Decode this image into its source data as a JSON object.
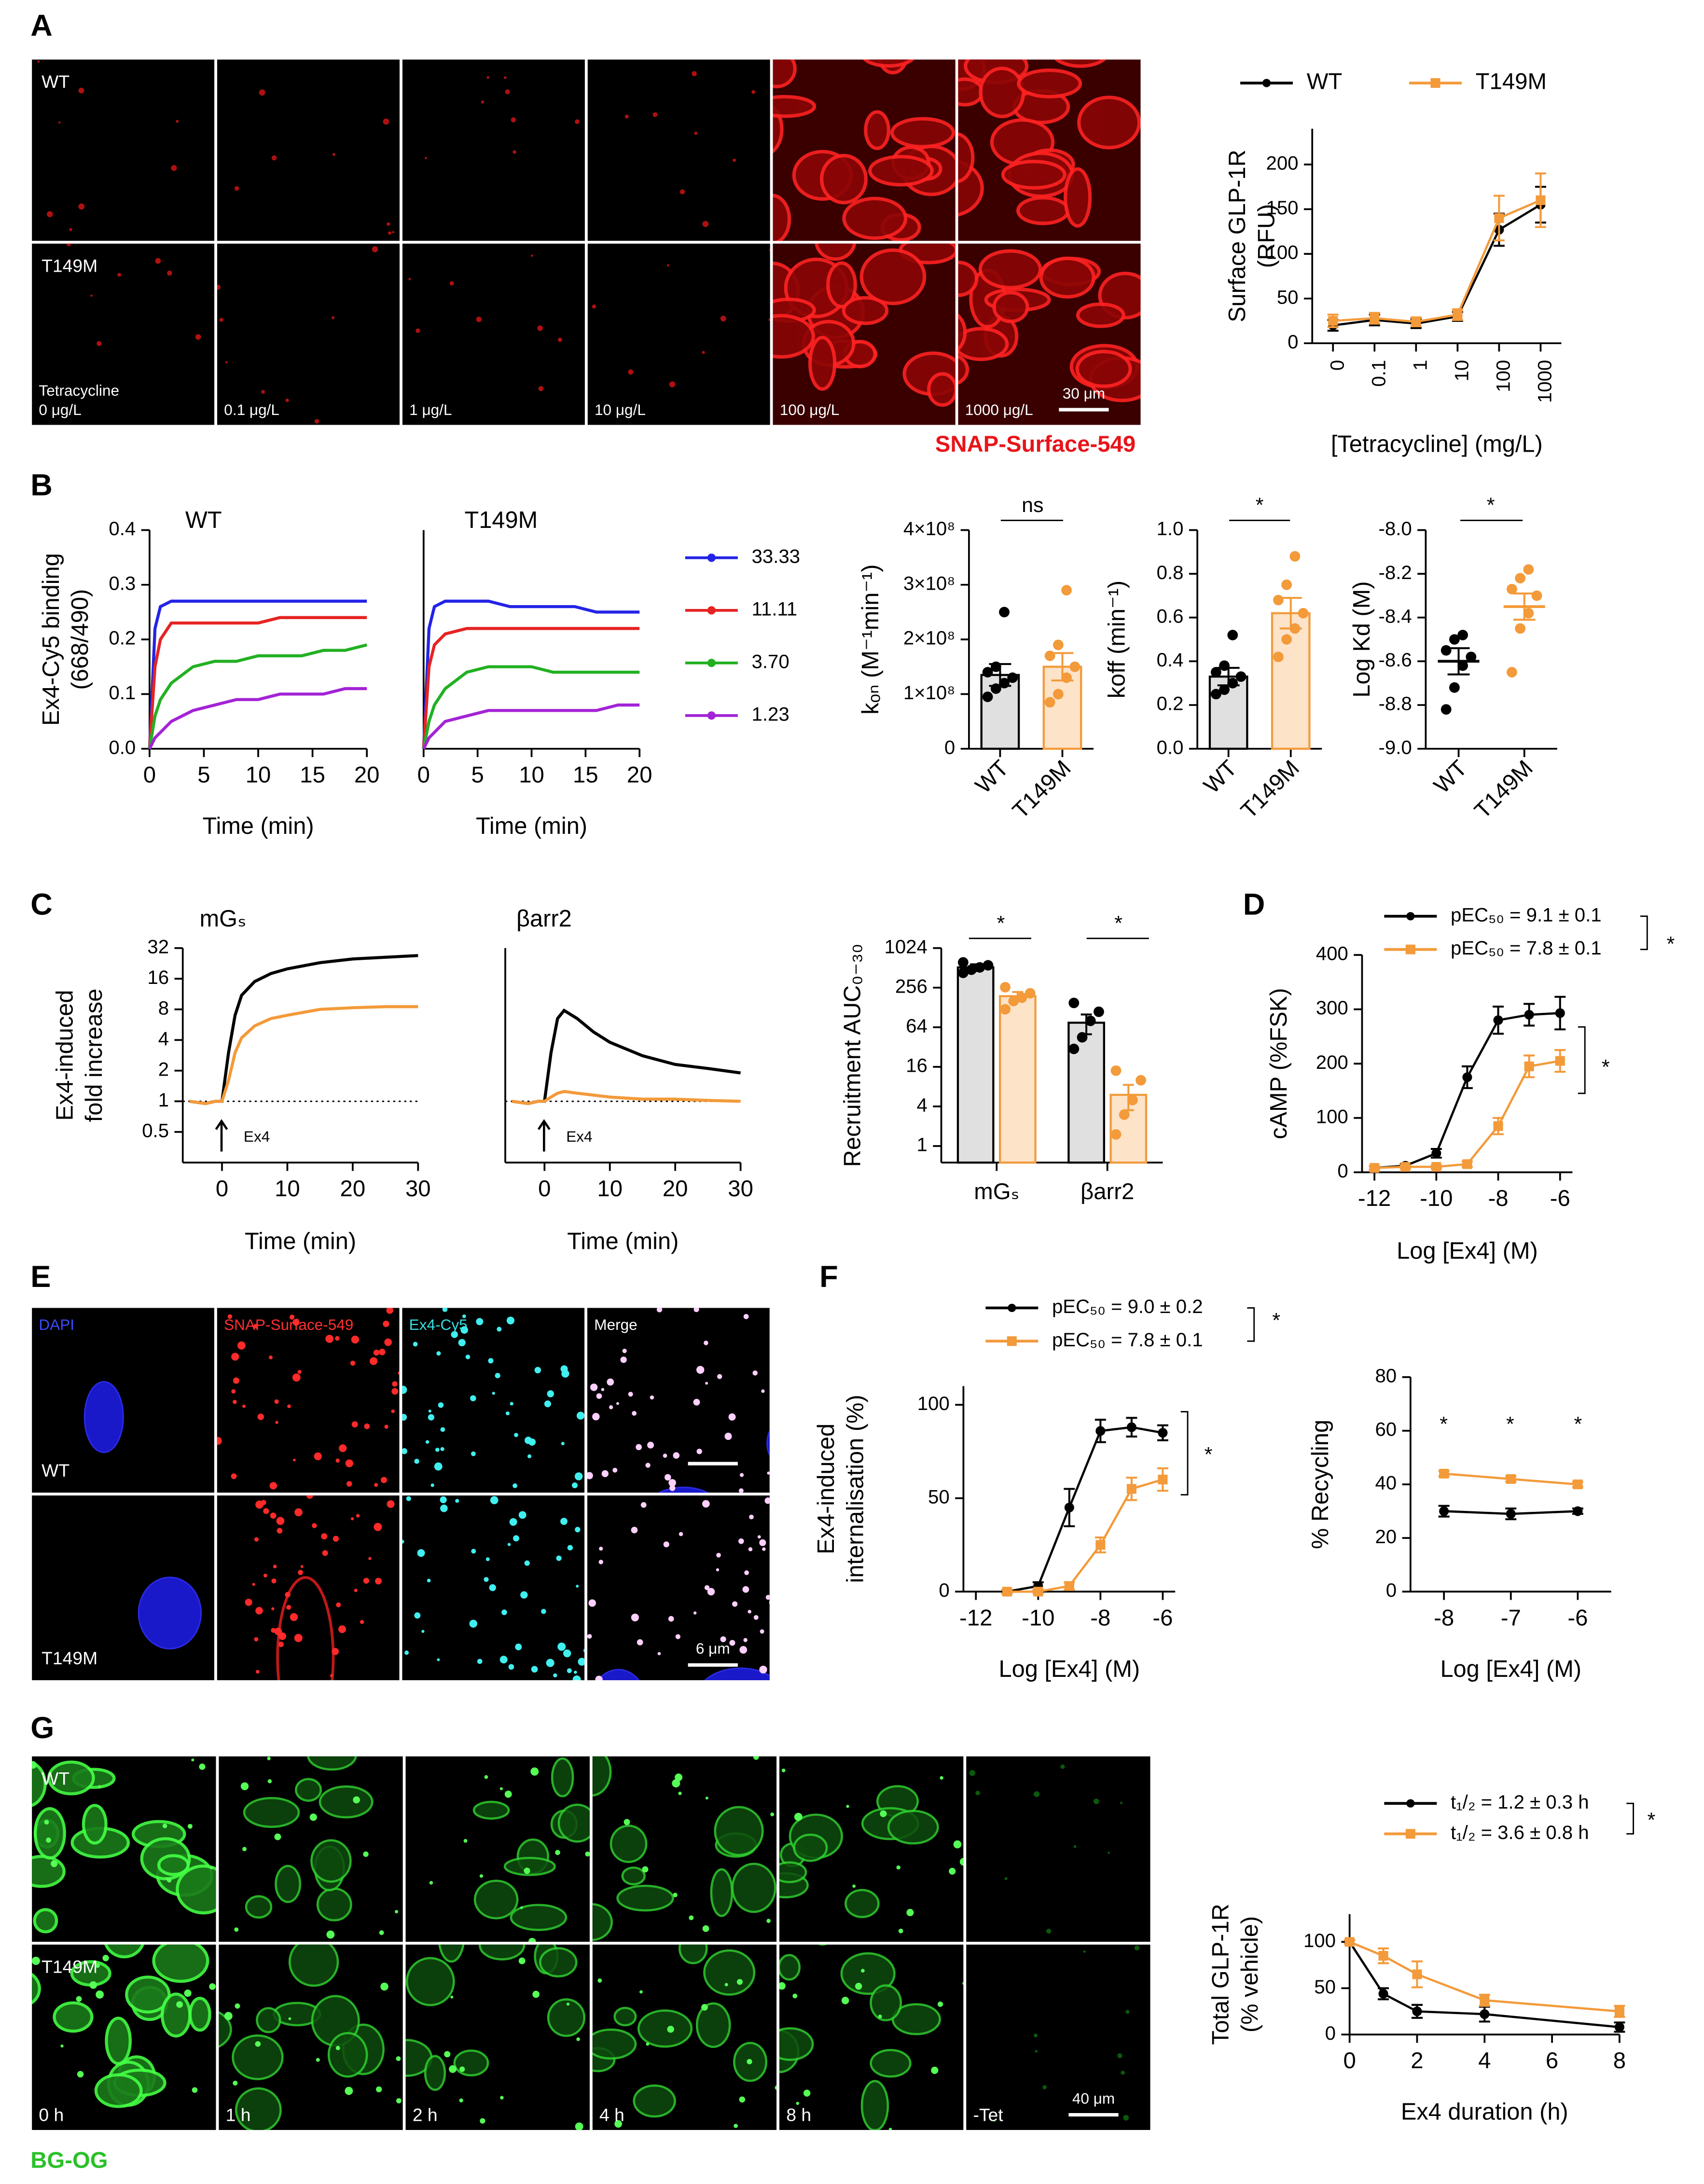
{
  "panel_labels": [
    "A",
    "B",
    "C",
    "D",
    "E",
    "F",
    "G"
  ],
  "micrographs": [
    {
      "rows": [
        "WT",
        "T149M"
      ],
      "prefix": "Tetracycline",
      "columns": [
        "0 μg/L",
        "0.1 μg/L",
        "1 μg/L",
        "10 μg/L",
        "100 μg/L",
        "1000 μg/L"
      ],
      "scale_bar": "30 μm",
      "stain": "SNAP-Surface-549"
    },
    {
      "rows": [
        "WT",
        "T149M"
      ],
      "columns": [
        "DAPI",
        "SNAP-Surface-549",
        "Ex4-Cy5",
        "Merge"
      ],
      "scale_bar": "6 μm"
    },
    {
      "rows": [
        "WT",
        "T149M"
      ],
      "columns": [
        "0 h",
        "1 h",
        "2 h",
        "4 h",
        "8 h",
        "-Tet"
      ],
      "scale_bar": "40 μm",
      "stain": "BG-OG"
    }
  ],
  "chart_data": [
    {
      "type": "line",
      "ylabel": [
        "Surface GLP-1R",
        "(RFU)"
      ],
      "xlabel": "[Tetracycline] (mg/L)",
      "categories": [
        "0",
        "0.1",
        "1",
        "10",
        "100",
        "1000"
      ],
      "ylim": [
        0,
        240
      ],
      "yticks": [
        0,
        50,
        100,
        150,
        200
      ],
      "markers": true,
      "series": [
        {
          "name": "WT",
          "color": "#000000",
          "values": [
            20,
            26,
            22,
            30,
            127,
            155
          ],
          "errors": [
            6,
            6,
            5,
            5,
            18,
            20
          ]
        },
        {
          "name": "T149M",
          "color": "#f39a3a",
          "marker": "square",
          "values": [
            25,
            28,
            24,
            32,
            140,
            160
          ],
          "errors": [
            7,
            6,
            5,
            6,
            25,
            30
          ]
        }
      ]
    },
    {
      "type": "line",
      "title": "WT",
      "ylabel": [
        "Ex4-Cy5 binding",
        "(668/490)"
      ],
      "xlabel": "Time (min)",
      "x": [
        0,
        0.5,
        1,
        2,
        4,
        6,
        8,
        10,
        12,
        14,
        16,
        18,
        20
      ],
      "xlim": [
        0,
        20
      ],
      "xticks": [
        0,
        5,
        10,
        15,
        20
      ],
      "ylim": [
        0,
        0.4
      ],
      "yticks": [
        {
          "value": 0,
          "label": "0.0"
        },
        0.1,
        0.2,
        0.3,
        0.4
      ],
      "series": [
        {
          "name": "33.33",
          "color": "#2323e6",
          "values": [
            0,
            0.22,
            0.26,
            0.27,
            0.27,
            0.27,
            0.27,
            0.27,
            0.27,
            0.27,
            0.27,
            0.27,
            0.27
          ]
        },
        {
          "name": "11.11",
          "color": "#e62323",
          "values": [
            0,
            0.15,
            0.2,
            0.23,
            0.23,
            0.23,
            0.23,
            0.23,
            0.24,
            0.24,
            0.24,
            0.24,
            0.24
          ]
        },
        {
          "name": "3.70",
          "color": "#22b022",
          "values": [
            0,
            0.06,
            0.09,
            0.12,
            0.15,
            0.16,
            0.16,
            0.17,
            0.17,
            0.17,
            0.18,
            0.18,
            0.19
          ]
        },
        {
          "name": "1.23",
          "color": "#a323d6",
          "values": [
            0,
            0.02,
            0.03,
            0.05,
            0.07,
            0.08,
            0.09,
            0.09,
            0.1,
            0.1,
            0.1,
            0.11,
            0.11
          ]
        }
      ]
    },
    {
      "type": "line",
      "title": "T149M",
      "xlabel": "Time (min)",
      "x": [
        0,
        0.5,
        1,
        2,
        4,
        6,
        8,
        10,
        12,
        14,
        16,
        18,
        20
      ],
      "xlim": [
        0,
        20
      ],
      "xticks": [
        0,
        5,
        10,
        15,
        20
      ],
      "ylim": [
        0,
        0.4
      ],
      "series": [
        {
          "color": "#2323e6",
          "values": [
            0,
            0.22,
            0.26,
            0.27,
            0.27,
            0.27,
            0.26,
            0.26,
            0.26,
            0.26,
            0.25,
            0.25,
            0.25
          ]
        },
        {
          "color": "#e62323",
          "values": [
            0,
            0.15,
            0.19,
            0.21,
            0.22,
            0.22,
            0.22,
            0.22,
            0.22,
            0.22,
            0.22,
            0.22,
            0.22
          ]
        },
        {
          "color": "#22b022",
          "values": [
            0,
            0.05,
            0.08,
            0.11,
            0.14,
            0.15,
            0.15,
            0.15,
            0.14,
            0.14,
            0.14,
            0.14,
            0.14
          ]
        },
        {
          "color": "#a323d6",
          "values": [
            0,
            0.02,
            0.03,
            0.05,
            0.06,
            0.07,
            0.07,
            0.07,
            0.07,
            0.07,
            0.07,
            0.08,
            0.08
          ]
        }
      ]
    },
    {
      "type": "bar",
      "ylabel": "kₒₙ (M⁻¹min⁻¹)",
      "categories": [
        "WT",
        "T149M"
      ],
      "values": [
        135000000,
        150000000
      ],
      "errors": [
        20000000,
        25000000
      ],
      "points": [
        [
          95000000,
          110000000,
          120000000,
          130000000,
          140000000,
          150000000,
          250000000
        ],
        [
          85000000,
          100000000,
          130000000,
          150000000,
          170000000,
          190000000,
          290000000
        ]
      ],
      "colors": [
        "#000000",
        "#f39a3a"
      ],
      "fills": [
        "#e0e0e0",
        "#fde3c8"
      ],
      "ylim": [
        0,
        400000000
      ],
      "yticks": [
        0,
        {
          "value": 100000000,
          "label": "1×10⁸"
        },
        {
          "value": 200000000,
          "label": "2×10⁸"
        },
        {
          "value": 300000000,
          "label": "3×10⁸"
        },
        {
          "value": 400000000,
          "label": "4×10⁸"
        }
      ],
      "annotations": [
        {
          "text": "ns"
        }
      ]
    },
    {
      "type": "bar",
      "ylabel": "koff (min⁻¹)",
      "categories": [
        "WT",
        "T149M"
      ],
      "values": [
        0.33,
        0.62
      ],
      "errors": [
        0.04,
        0.07
      ],
      "points": [
        [
          0.25,
          0.27,
          0.3,
          0.33,
          0.35,
          0.38,
          0.52
        ],
        [
          0.42,
          0.5,
          0.55,
          0.62,
          0.68,
          0.75,
          0.88
        ]
      ],
      "colors": [
        "#000000",
        "#f39a3a"
      ],
      "fills": [
        "#e0e0e0",
        "#fde3c8"
      ],
      "ylim": [
        0,
        1
      ],
      "yticks": [
        {
          "value": 0,
          "label": "0.0"
        },
        0.2,
        0.4,
        0.6,
        0.8,
        {
          "value": 1,
          "label": "1.0"
        }
      ],
      "annotations": [
        {
          "text": "*"
        }
      ]
    },
    {
      "type": "strip",
      "ylabel": "Log Kd (M)",
      "categories": [
        "WT",
        "T149M"
      ],
      "values": [
        -8.6,
        -8.35
      ],
      "errors": [
        0.06,
        0.06
      ],
      "points": [
        [
          -8.82,
          -8.72,
          -8.62,
          -8.58,
          -8.55,
          -8.5,
          -8.48
        ],
        [
          -8.65,
          -8.45,
          -8.38,
          -8.3,
          -8.27,
          -8.22,
          -8.18
        ]
      ],
      "colors": [
        "#000000",
        "#f39a3a"
      ],
      "ylim": [
        -9,
        -8
      ],
      "yticks": [
        {
          "value": -9,
          "label": "-9.0"
        },
        -8.8,
        -8.6,
        -8.4,
        -8.2,
        {
          "value": -8,
          "label": "-8.0"
        }
      ],
      "annotations": [
        {
          "text": "*"
        }
      ]
    },
    {
      "type": "line",
      "title": "mGₛ",
      "ylabel": [
        "Ex4-induced",
        "fold increase"
      ],
      "xlabel": "Time (min)",
      "yscale": "log",
      "x": [
        -5,
        -2.5,
        -1,
        0,
        1,
        2,
        3,
        5,
        7.5,
        10,
        15,
        20,
        25,
        30
      ],
      "xlim": [
        -6,
        30
      ],
      "xticks": [
        0,
        10,
        20,
        30
      ],
      "ylim": [
        0.25,
        32
      ],
      "yticks": [
        0.5,
        1,
        2,
        4,
        8,
        16,
        32
      ],
      "reference": 1,
      "annotations": [
        {
          "text": "Ex4"
        }
      ],
      "series": [
        {
          "color": "#000000",
          "values": [
            1,
            0.95,
            1,
            1,
            3,
            7,
            11,
            15,
            18,
            20,
            23,
            25,
            26,
            27
          ]
        },
        {
          "color": "#f39a3a",
          "values": [
            1,
            0.95,
            1,
            1,
            1.6,
            3,
            4.2,
            5.5,
            6.5,
            7,
            8,
            8.3,
            8.5,
            8.5
          ]
        }
      ]
    },
    {
      "type": "line",
      "title": "βarr2",
      "xlabel": "Time (min)",
      "yscale": "log",
      "x": [
        -5,
        -2.5,
        -1,
        0,
        1,
        2,
        3,
        5,
        7.5,
        10,
        15,
        20,
        25,
        30
      ],
      "xlim": [
        -6,
        30
      ],
      "xticks": [
        0,
        10,
        20,
        30
      ],
      "ylim": [
        0.25,
        32
      ],
      "reference": 1,
      "annotations": [
        {
          "text": "Ex4"
        }
      ],
      "series": [
        {
          "color": "#000000",
          "values": [
            1,
            0.95,
            1,
            1,
            3,
            6.5,
            7.8,
            6.5,
            4.8,
            3.8,
            2.8,
            2.3,
            2.1,
            1.9
          ]
        },
        {
          "color": "#f39a3a",
          "values": [
            1,
            0.95,
            1,
            1,
            1.1,
            1.2,
            1.25,
            1.2,
            1.15,
            1.1,
            1.05,
            1.05,
            1.02,
            1
          ]
        }
      ]
    },
    {
      "type": "bar",
      "ylabel": "Recruitment AUC₀₋₃₀",
      "yscale": "log",
      "categories": [
        "mGₛ",
        "βarr2"
      ],
      "ylim": [
        0.56,
        1024
      ],
      "yticks": [
        1,
        4,
        16,
        64,
        256,
        1024
      ],
      "series": [
        {
          "color": "#000000",
          "fill": "#e0e0e0",
          "values": [
            520,
            75
          ],
          "errors": [
            60,
            25
          ],
          "points": [
            [
              430,
              480,
              520,
              560,
              620
            ],
            [
              30,
              45,
              80,
              110,
              150
            ]
          ]
        },
        {
          "color": "#f39a3a",
          "fill": "#fde3c8",
          "values": [
            190,
            6
          ],
          "errors": [
            30,
            2.5
          ],
          "points": [
            [
              120,
              160,
              180,
              210,
              260
            ],
            [
              1.5,
              3,
              5,
              10,
              14
            ]
          ]
        }
      ],
      "annotations": [
        {
          "text": "*"
        },
        {
          "text": "*"
        }
      ]
    },
    {
      "type": "line",
      "ylabel": "cAMP (%FSK)",
      "xlabel": "Log [Ex4] (M)",
      "markers": true,
      "x": [
        -12,
        -11,
        -10,
        -9,
        -8,
        -7,
        -6
      ],
      "xlim": [
        -12.4,
        -5.6
      ],
      "xticks": [
        -12,
        -10,
        -8,
        -6
      ],
      "ylim": [
        0,
        400
      ],
      "yticks": [
        0,
        100,
        200,
        300,
        400
      ],
      "series": [
        {
          "name": "pEC₅₀ = 9.1 ± 0.1",
          "color": "#000000",
          "values": [
            8,
            12,
            35,
            175,
            280,
            290,
            293
          ],
          "errors": [
            3,
            3,
            8,
            20,
            25,
            20,
            30
          ]
        },
        {
          "name": "pEC₅₀ = 7.8 ± 0.1",
          "color": "#f39a3a",
          "marker": "square",
          "values": [
            8,
            10,
            10,
            15,
            85,
            195,
            205
          ],
          "errors": [
            3,
            3,
            3,
            5,
            15,
            20,
            20
          ]
        }
      ],
      "annotations": [
        {
          "text": "*"
        },
        {
          "text": "*"
        }
      ]
    },
    {
      "type": "line",
      "ylabel": [
        "Ex4-induced",
        "internalisation (%)"
      ],
      "xlabel": "Log [Ex4] (M)",
      "markers": true,
      "x": [
        -11,
        -10,
        -9,
        -8,
        -7,
        -6
      ],
      "xlim": [
        -12.4,
        -5.6
      ],
      "xticks": [
        -12,
        -10,
        -8,
        -6
      ],
      "ylim": [
        0,
        110
      ],
      "yticks": [
        0,
        50,
        100
      ],
      "series": [
        {
          "name": "pEC₅₀ = 9.0 ± 0.2",
          "color": "#000000",
          "values": [
            0,
            3,
            45,
            86,
            88,
            85
          ],
          "errors": [
            1,
            2,
            10,
            6,
            5,
            4
          ]
        },
        {
          "name": "pEC₅₀ = 7.8 ± 0.1",
          "color": "#f39a3a",
          "marker": "square",
          "values": [
            0,
            0,
            3,
            25,
            55,
            60
          ],
          "errors": [
            1,
            1,
            2,
            4,
            6,
            6
          ]
        }
      ],
      "annotations": [
        {
          "text": "*"
        },
        {
          "text": "*"
        }
      ]
    },
    {
      "type": "line",
      "ylabel": "% Recycling",
      "xlabel": "Log [Ex4] (M)",
      "markers": true,
      "x": [
        -8,
        -7,
        -6
      ],
      "xlim": [
        -8.5,
        -5.5
      ],
      "xticks": [
        -8,
        -7,
        -6
      ],
      "ylim": [
        0,
        80
      ],
      "yticks": [
        0,
        20,
        40,
        60,
        80
      ],
      "series": [
        {
          "color": "#000000",
          "values": [
            30,
            29,
            30
          ],
          "errors": [
            2,
            2,
            1
          ]
        },
        {
          "color": "#f39a3a",
          "marker": "square",
          "values": [
            44,
            42,
            40
          ],
          "errors": [
            1,
            1,
            1
          ]
        }
      ],
      "annotations": [
        {
          "text": "*"
        },
        {
          "text": "*"
        },
        {
          "text": "*"
        }
      ]
    },
    {
      "type": "line",
      "ylabel": [
        "Total GLP-1R",
        "(% vehicle)"
      ],
      "xlabel": "Ex4 duration (h)",
      "markers": true,
      "x": [
        0,
        1,
        2,
        4,
        8
      ],
      "xlim": [
        0,
        8
      ],
      "xticks": [
        0,
        2,
        4,
        6,
        8
      ],
      "ylim": [
        0,
        130
      ],
      "yticks": [
        0,
        50,
        100
      ],
      "series": [
        {
          "name": "t₁/₂ = 1.2 ± 0.3 h",
          "color": "#000000",
          "values": [
            100,
            44,
            25,
            22,
            8
          ],
          "errors": [
            2,
            6,
            7,
            8,
            5
          ]
        },
        {
          "name": "t₁/₂ = 3.6 ± 0.8 h",
          "color": "#f39a3a",
          "marker": "square",
          "values": [
            100,
            85,
            65,
            37,
            25
          ],
          "errors": [
            2,
            8,
            14,
            6,
            6
          ]
        }
      ],
      "annotations": [
        {
          "text": "*"
        }
      ]
    }
  ]
}
